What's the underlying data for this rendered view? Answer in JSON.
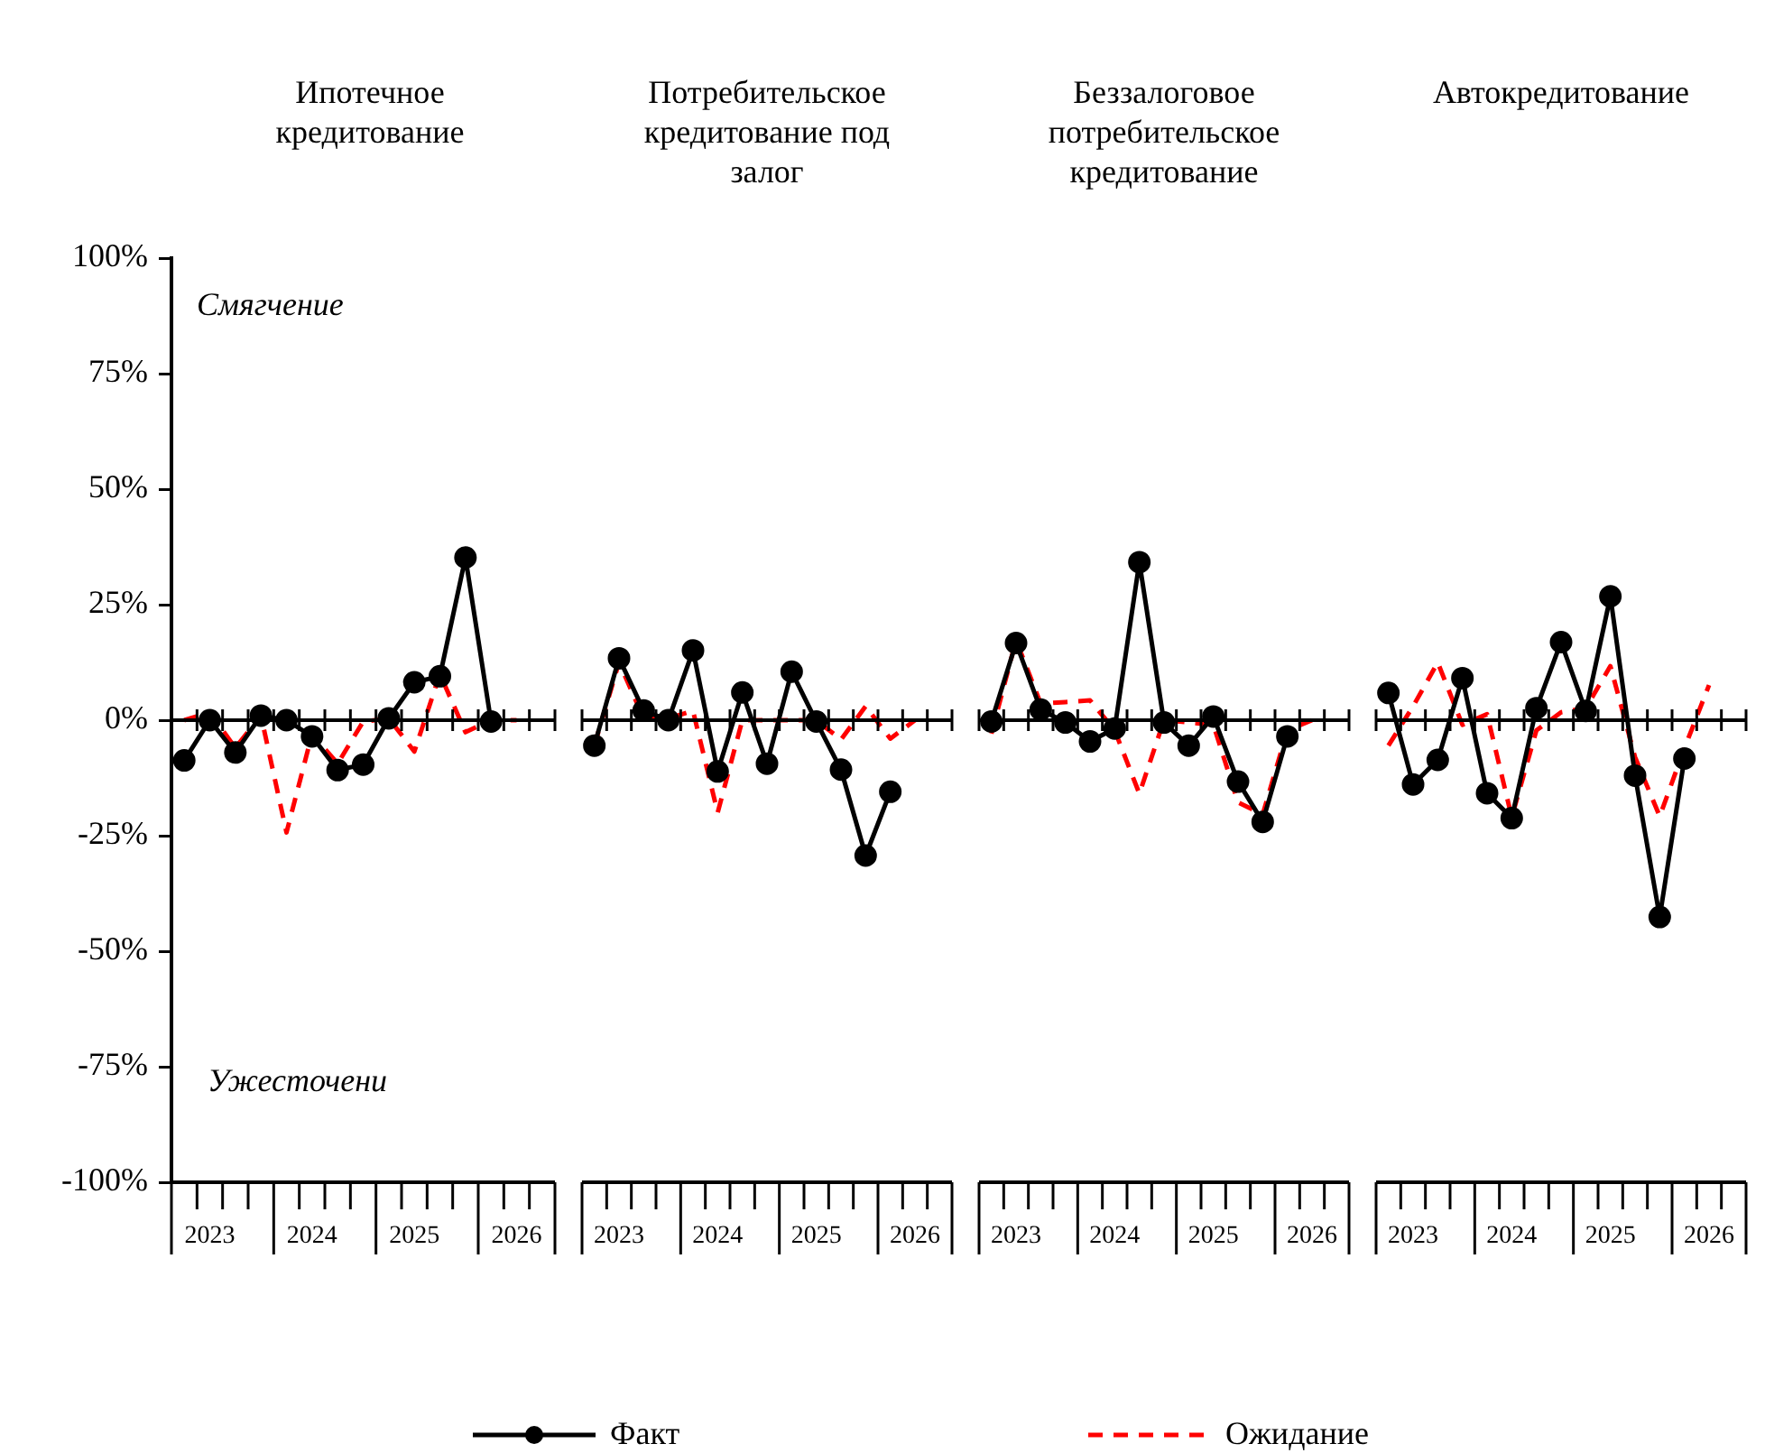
{
  "chart_data": [
    {
      "type": "line",
      "title": "Ипотечное кредитование",
      "categories": [
        null,
        "2023",
        null,
        null,
        null,
        "2024",
        null,
        null,
        null,
        "2025",
        null,
        null,
        null,
        "2026",
        null
      ],
      "ylim": [
        -100,
        100
      ],
      "yticks": [
        {
          "value": -100,
          "label": "-100%"
        },
        {
          "value": -75,
          "label": "-75%"
        },
        {
          "value": -50,
          "label": "-50%"
        },
        {
          "value": -25,
          "label": "-25%"
        },
        {
          "value": 0,
          "label": "0%"
        },
        {
          "value": 25,
          "label": "25%"
        },
        {
          "value": 50,
          "label": "50%"
        },
        {
          "value": 75,
          "label": "75%"
        },
        {
          "value": 100,
          "label": "100%"
        }
      ],
      "grid": false,
      "legend": "bottom",
      "annotations": [
        "Смягчение",
        "Ужесточени"
      ],
      "ref_lines": [
        {
          "axis": "y",
          "value": 0
        }
      ],
      "series": [
        {
          "name": "Факт",
          "color": "#000000",
          "marker": "circle",
          "line_style": "solid",
          "values": [
            -8.7,
            0,
            -7,
            1,
            0,
            -3.5,
            -10.8,
            -9.6,
            0.4,
            8.2,
            9.5,
            35.2,
            -0.3,
            null,
            null
          ]
        },
        {
          "name": "Ожидание",
          "color": "#ff0000",
          "marker": "none",
          "line_style": "dashed",
          "values": [
            0,
            1.7,
            -6,
            1,
            -24.3,
            -3,
            -9.4,
            -0.3,
            0.4,
            -6.8,
            10,
            -2.6,
            0,
            0,
            null
          ]
        }
      ]
    },
    {
      "type": "line",
      "title": "Потребительское кредитование под залог",
      "categories": [
        null,
        "2023",
        null,
        null,
        null,
        "2024",
        null,
        null,
        null,
        "2025",
        null,
        null,
        null,
        "2026",
        null
      ],
      "ylim": [
        -100,
        100
      ],
      "grid": false,
      "tick_labels": "x",
      "ref_lines": [
        {
          "axis": "y",
          "value": 0
        }
      ],
      "series": [
        {
          "color": "#000000",
          "marker": "circle",
          "line_style": "solid",
          "values": [
            -5.5,
            13.4,
            2.1,
            0,
            15.1,
            -11.1,
            6,
            -9.4,
            10.5,
            -0.3,
            -10.7,
            -29.3,
            -15.5,
            null,
            null
          ]
        },
        {
          "color": "#ff0000",
          "marker": "none",
          "line_style": "dashed",
          "values": [
            -5.5,
            12.5,
            0.4,
            0.4,
            2,
            -20,
            0,
            0,
            0,
            0,
            -4.2,
            3,
            -4,
            0,
            null
          ]
        }
      ]
    },
    {
      "type": "line",
      "title": "Беззалоговое потребительское кредитование",
      "categories": [
        null,
        "2023",
        null,
        null,
        null,
        "2024",
        null,
        null,
        null,
        "2025",
        null,
        null,
        null,
        "2026",
        null
      ],
      "ylim": [
        -100,
        100
      ],
      "grid": false,
      "tick_labels": "x",
      "ref_lines": [
        {
          "axis": "y",
          "value": 0
        }
      ],
      "series": [
        {
          "color": "#000000",
          "marker": "circle",
          "line_style": "solid",
          "values": [
            -0.3,
            16.7,
            2.3,
            -0.5,
            -4.6,
            -1.8,
            34.2,
            -0.5,
            -5.5,
            0.8,
            -13.3,
            -22,
            -3.5,
            null,
            null
          ]
        },
        {
          "color": "#ff0000",
          "marker": "none",
          "line_style": "dashed",
          "values": [
            -2.9,
            17.3,
            3.6,
            3.9,
            4.3,
            -2.2,
            -15.9,
            0,
            -0.5,
            -1,
            -17.8,
            -20.4,
            -2.2,
            0,
            null
          ]
        }
      ]
    },
    {
      "type": "line",
      "title": "Автокредитование",
      "categories": [
        null,
        "2023",
        null,
        null,
        null,
        "2024",
        null,
        null,
        null,
        "2025",
        null,
        null,
        null,
        "2026",
        null
      ],
      "ylim": [
        -100,
        100
      ],
      "grid": false,
      "tick_labels": "x",
      "ref_lines": [
        {
          "axis": "y",
          "value": 0
        }
      ],
      "series": [
        {
          "color": "#000000",
          "marker": "circle",
          "line_style": "solid",
          "values": [
            5.9,
            -13.9,
            -8.6,
            9.1,
            -15.8,
            -21.2,
            2.6,
            16.9,
            2,
            26.8,
            -12,
            -42.6,
            -8.3,
            null,
            null
          ]
        },
        {
          "color": "#ff0000",
          "marker": "none",
          "line_style": "dashed",
          "values": [
            -5.5,
            3,
            12.5,
            -1,
            1.3,
            -21,
            -2.2,
            1.7,
            2.6,
            11.7,
            -8,
            -20.8,
            -6.1,
            7.6,
            null
          ]
        }
      ]
    }
  ]
}
